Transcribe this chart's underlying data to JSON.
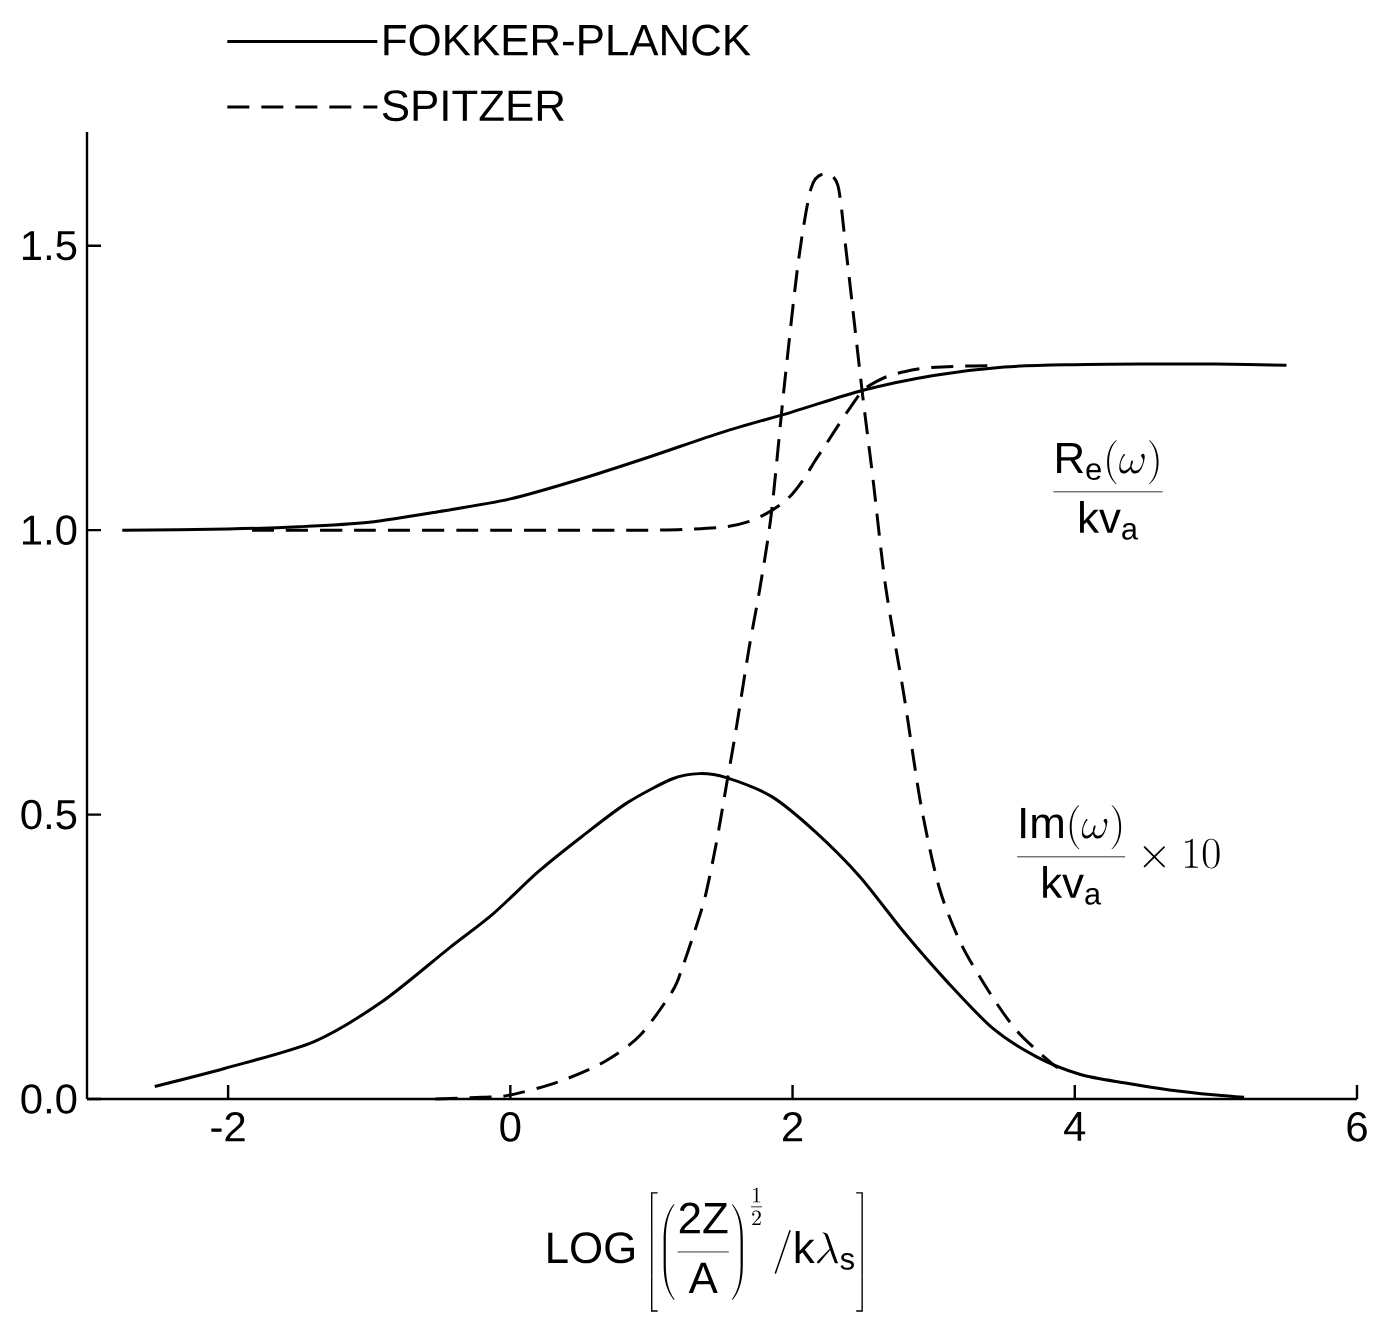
{
  "chart_data": {
    "type": "line",
    "xlabel": "\\mathrm{LOG}\\left[\\left(\\frac{\\mathrm{2Z}}{\\mathrm{A}}\\right)^{\\frac{1}{2}}\\Big/\\mathrm{k}\\lambda_{\\mathrm{s}}\\right]",
    "annotations": [
      "\\frac{\\mathrm{R}_{\\mathrm{e}}(\\omega)}{\\mathrm{kv}_{\\mathrm{a}}}",
      "\\frac{\\mathrm{Im}(\\omega)}{\\mathrm{kv}_{\\mathrm{a}}}\\times 10"
    ],
    "xlim": [
      -3,
      6
    ],
    "ylim": [
      0,
      1.7
    ],
    "xticks": [
      -2,
      0,
      2,
      4,
      6
    ],
    "yticks": [
      {
        "value": 0,
        "label": "0.0"
      },
      0.5,
      {
        "value": 1,
        "label": "1.0"
      },
      1.5
    ],
    "legend": "top",
    "marker": "none",
    "series": [
      {
        "name": "FOKKER-PLANCK",
        "color": "#000000",
        "line_style": "solid",
        "x": [
          -2.75,
          -2,
          -1.5,
          -1,
          -0.5,
          0,
          0.5,
          1,
          1.5,
          2,
          2.5,
          3,
          3.5,
          4,
          4.5,
          5,
          5.5
        ],
        "values": [
          1.0,
          1.002,
          1.006,
          1.014,
          1.033,
          1.055,
          1.09,
          1.13,
          1.172,
          1.208,
          1.246,
          1.272,
          1.287,
          1.291,
          1.292,
          1.292,
          1.29
        ]
      },
      {
        "name": "SPITZER",
        "color": "#000000",
        "line_style": "dashed",
        "x": [
          -1.83,
          -1,
          0,
          1,
          1.3,
          1.53,
          1.7,
          1.82,
          1.92,
          2.0,
          2.08,
          2.16,
          2.24,
          2.32,
          2.41,
          2.5,
          2.6,
          2.69,
          2.8,
          2.94,
          3.15,
          3.42
        ],
        "values": [
          1.0,
          1.0,
          1.0,
          1.0,
          1.002,
          1.006,
          1.016,
          1.03,
          1.046,
          1.064,
          1.09,
          1.122,
          1.152,
          1.183,
          1.216,
          1.246,
          1.262,
          1.272,
          1.279,
          1.285,
          1.288,
          1.289
        ]
      },
      {
        "color": "#000000",
        "line_style": "solid",
        "x": [
          -2.52,
          -2.02,
          -1.39,
          -0.91,
          -0.44,
          -0.12,
          0.2,
          0.51,
          0.83,
          1.15,
          1.34,
          1.53,
          1.85,
          2.16,
          2.48,
          2.79,
          3.1,
          3.42,
          3.73,
          4.04,
          4.36,
          4.67,
          5.0,
          5.2
        ],
        "values": [
          0.022,
          0.054,
          0.101,
          0.171,
          0.264,
          0.326,
          0.4,
          0.462,
          0.521,
          0.563,
          0.572,
          0.565,
          0.532,
          0.47,
          0.39,
          0.293,
          0.205,
          0.124,
          0.074,
          0.043,
          0.028,
          0.016,
          0.007,
          0.003
        ]
      },
      {
        "color": "#000000",
        "line_style": "dashed",
        "x": [
          -0.53,
          -0.2,
          0,
          0.35,
          0.67,
          0.92,
          1.15,
          1.22,
          1.3,
          1.38,
          1.46,
          1.53,
          1.6,
          1.69,
          1.77,
          1.85,
          1.94,
          2.04,
          2.13,
          2.22,
          2.32,
          2.38,
          2.44,
          2.5,
          2.57,
          2.66,
          2.79,
          2.91,
          3.04,
          3.2,
          3.42,
          3.6,
          3.82,
          3.88
        ],
        "values": [
          0,
          0.003,
          0.007,
          0.031,
          0.066,
          0.112,
          0.19,
          0.232,
          0.29,
          0.355,
          0.45,
          0.55,
          0.65,
          0.79,
          0.9,
          1.03,
          1.25,
          1.47,
          1.6,
          1.626,
          1.607,
          1.49,
          1.36,
          1.23,
          1.09,
          0.9,
          0.709,
          0.517,
          0.371,
          0.27,
          0.178,
          0.117,
          0.066,
          0.055
        ]
      }
    ]
  }
}
